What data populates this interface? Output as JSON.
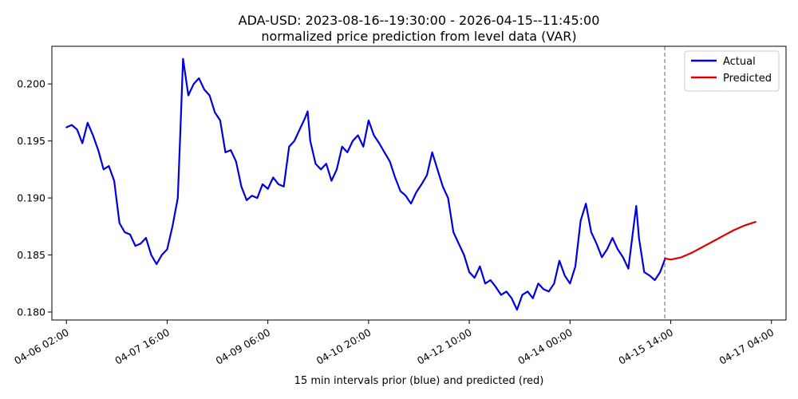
{
  "chart_data": {
    "type": "line",
    "title": "ADA-USD: 2023-08-16--19:30:00 - 2026-04-15--11:45:00",
    "subtitle": "normalized price prediction from level data (VAR)",
    "xlabel": "15 min intervals prior (blue) and predicted (red)",
    "ylabel": "",
    "x_ticks": [
      "04-06 02:00",
      "04-07 16:00",
      "04-09 06:00",
      "04-10 20:00",
      "04-12 10:00",
      "04-14 00:00",
      "04-15 14:00",
      "04-17 04:00"
    ],
    "y_ticks": [
      "0.180",
      "0.185",
      "0.190",
      "0.195",
      "0.200"
    ],
    "ylim": [
      0.1793,
      0.2033
    ],
    "xlim": [
      "04-05 20:30",
      "04-17 09:30"
    ],
    "grid": false,
    "legend_position": "top-right",
    "cutoff": "04-15 11:45",
    "colors": {
      "actual": "#0000dd",
      "predicted": "#dd0000",
      "cutoff_line": "#666666"
    },
    "series": [
      {
        "name": "Actual",
        "color": "#0000dd",
        "points": [
          [
            "04-06 02:00",
            0.1962
          ],
          [
            "04-06 04:00",
            0.1964
          ],
          [
            "04-06 06:00",
            0.196
          ],
          [
            "04-06 08:00",
            0.1948
          ],
          [
            "04-06 10:00",
            0.1966
          ],
          [
            "04-06 12:00",
            0.1955
          ],
          [
            "04-06 14:00",
            0.1942
          ],
          [
            "04-06 16:00",
            0.1925
          ],
          [
            "04-06 18:00",
            0.1928
          ],
          [
            "04-06 20:00",
            0.1915
          ],
          [
            "04-06 22:00",
            0.1878
          ],
          [
            "04-07 00:00",
            0.187
          ],
          [
            "04-07 02:00",
            0.1868
          ],
          [
            "04-07 04:00",
            0.1858
          ],
          [
            "04-07 06:00",
            0.186
          ],
          [
            "04-07 08:00",
            0.1865
          ],
          [
            "04-07 10:00",
            0.185
          ],
          [
            "04-07 12:00",
            0.1842
          ],
          [
            "04-07 14:00",
            0.185
          ],
          [
            "04-07 16:00",
            0.1855
          ],
          [
            "04-07 18:00",
            0.1875
          ],
          [
            "04-07 20:00",
            0.19
          ],
          [
            "04-07 21:00",
            0.196
          ],
          [
            "04-07 22:00",
            0.2022
          ],
          [
            "04-08 00:00",
            0.199
          ],
          [
            "04-08 02:00",
            0.2
          ],
          [
            "04-08 04:00",
            0.2005
          ],
          [
            "04-08 06:00",
            0.1995
          ],
          [
            "04-08 08:00",
            0.199
          ],
          [
            "04-08 10:00",
            0.1975
          ],
          [
            "04-08 12:00",
            0.1968
          ],
          [
            "04-08 14:00",
            0.194
          ],
          [
            "04-08 16:00",
            0.1942
          ],
          [
            "04-08 18:00",
            0.1932
          ],
          [
            "04-08 20:00",
            0.191
          ],
          [
            "04-08 22:00",
            0.1898
          ],
          [
            "04-09 00:00",
            0.1902
          ],
          [
            "04-09 02:00",
            0.19
          ],
          [
            "04-09 04:00",
            0.1912
          ],
          [
            "04-09 06:00",
            0.1908
          ],
          [
            "04-09 08:00",
            0.1918
          ],
          [
            "04-09 10:00",
            0.1912
          ],
          [
            "04-09 12:00",
            0.191
          ],
          [
            "04-09 14:00",
            0.1945
          ],
          [
            "04-09 16:00",
            0.195
          ],
          [
            "04-09 18:00",
            0.196
          ],
          [
            "04-09 20:00",
            0.197
          ],
          [
            "04-09 21:00",
            0.1976
          ],
          [
            "04-09 22:00",
            0.195
          ],
          [
            "04-10 00:00",
            0.193
          ],
          [
            "04-10 02:00",
            0.1925
          ],
          [
            "04-10 04:00",
            0.193
          ],
          [
            "04-10 06:00",
            0.1915
          ],
          [
            "04-10 08:00",
            0.1925
          ],
          [
            "04-10 10:00",
            0.1945
          ],
          [
            "04-10 12:00",
            0.194
          ],
          [
            "04-10 14:00",
            0.195
          ],
          [
            "04-10 16:00",
            0.1955
          ],
          [
            "04-10 18:00",
            0.1945
          ],
          [
            "04-10 20:00",
            0.1968
          ],
          [
            "04-10 22:00",
            0.1955
          ],
          [
            "04-11 00:00",
            0.1948
          ],
          [
            "04-11 02:00",
            0.194
          ],
          [
            "04-11 04:00",
            0.1932
          ],
          [
            "04-11 06:00",
            0.1918
          ],
          [
            "04-11 08:00",
            0.1906
          ],
          [
            "04-11 10:00",
            0.1902
          ],
          [
            "04-11 12:00",
            0.1895
          ],
          [
            "04-11 14:00",
            0.1905
          ],
          [
            "04-11 16:00",
            0.1912
          ],
          [
            "04-11 18:00",
            0.192
          ],
          [
            "04-11 20:00",
            0.194
          ],
          [
            "04-11 22:00",
            0.1925
          ],
          [
            "04-12 00:00",
            0.191
          ],
          [
            "04-12 02:00",
            0.19
          ],
          [
            "04-12 04:00",
            0.187
          ],
          [
            "04-12 06:00",
            0.186
          ],
          [
            "04-12 08:00",
            0.185
          ],
          [
            "04-12 10:00",
            0.1835
          ],
          [
            "04-12 12:00",
            0.183
          ],
          [
            "04-12 14:00",
            0.184
          ],
          [
            "04-12 16:00",
            0.1825
          ],
          [
            "04-12 18:00",
            0.1828
          ],
          [
            "04-12 20:00",
            0.1822
          ],
          [
            "04-12 22:00",
            0.1815
          ],
          [
            "04-13 00:00",
            0.1818
          ],
          [
            "04-13 02:00",
            0.1812
          ],
          [
            "04-13 04:00",
            0.1802
          ],
          [
            "04-13 06:00",
            0.1815
          ],
          [
            "04-13 08:00",
            0.1818
          ],
          [
            "04-13 10:00",
            0.1812
          ],
          [
            "04-13 12:00",
            0.1825
          ],
          [
            "04-13 14:00",
            0.182
          ],
          [
            "04-13 16:00",
            0.1818
          ],
          [
            "04-13 18:00",
            0.1825
          ],
          [
            "04-13 20:00",
            0.1845
          ],
          [
            "04-13 22:00",
            0.1832
          ],
          [
            "04-14 00:00",
            0.1825
          ],
          [
            "04-14 02:00",
            0.184
          ],
          [
            "04-14 04:00",
            0.188
          ],
          [
            "04-14 06:00",
            0.1895
          ],
          [
            "04-14 08:00",
            0.187
          ],
          [
            "04-14 10:00",
            0.186
          ],
          [
            "04-14 12:00",
            0.1848
          ],
          [
            "04-14 14:00",
            0.1855
          ],
          [
            "04-14 16:00",
            0.1865
          ],
          [
            "04-14 18:00",
            0.1855
          ],
          [
            "04-14 20:00",
            0.1848
          ],
          [
            "04-14 22:00",
            0.1838
          ],
          [
            "04-15 00:00",
            0.1875
          ],
          [
            "04-15 01:00",
            0.1893
          ],
          [
            "04-15 02:00",
            0.1865
          ],
          [
            "04-15 04:00",
            0.1835
          ],
          [
            "04-15 06:00",
            0.1832
          ],
          [
            "04-15 08:00",
            0.1828
          ],
          [
            "04-15 10:00",
            0.1835
          ],
          [
            "04-15 11:45",
            0.1846
          ]
        ]
      },
      {
        "name": "Predicted",
        "color": "#dd0000",
        "points": [
          [
            "04-15 11:45",
            0.1847
          ],
          [
            "04-15 14:00",
            0.1846
          ],
          [
            "04-15 18:00",
            0.1848
          ],
          [
            "04-15 22:00",
            0.1852
          ],
          [
            "04-16 02:00",
            0.1857
          ],
          [
            "04-16 06:00",
            0.1862
          ],
          [
            "04-16 10:00",
            0.1867
          ],
          [
            "04-16 14:00",
            0.1872
          ],
          [
            "04-16 18:00",
            0.1876
          ],
          [
            "04-16 22:00",
            0.1879
          ]
        ]
      }
    ]
  }
}
